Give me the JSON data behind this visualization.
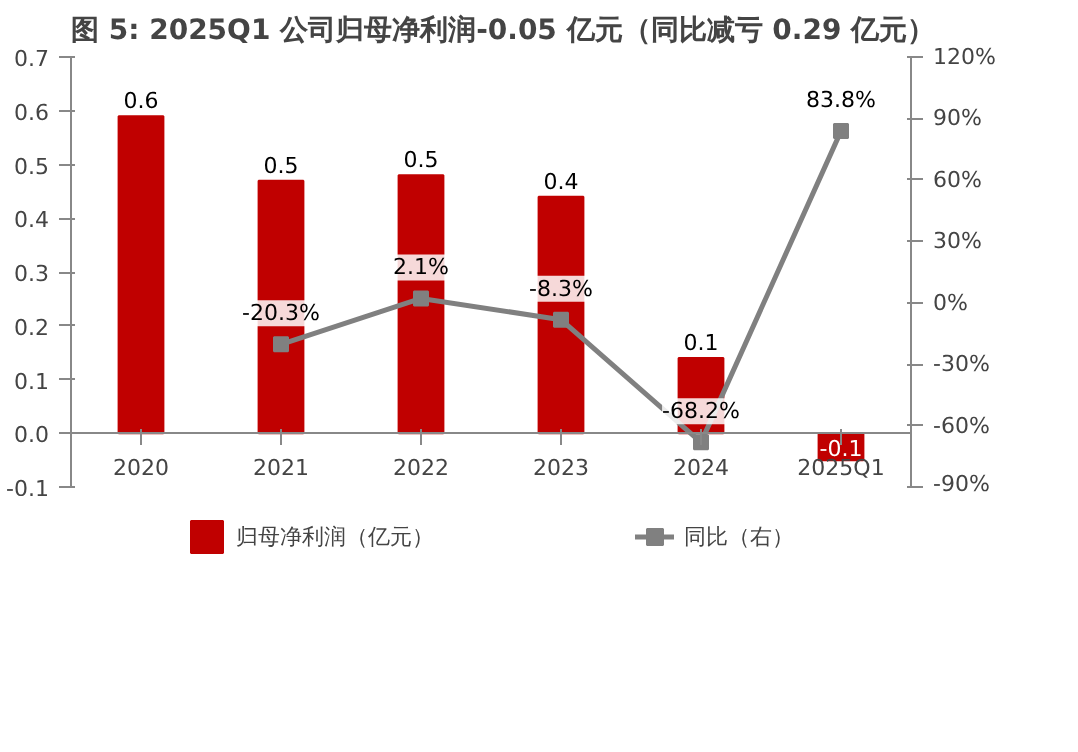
{
  "chart_data": {
    "type": "bar",
    "title": "图 5: 2025Q1 公司归母净利润-0.05 亿元（同比减亏 0.29 亿元）",
    "categories": [
      "2020",
      "2021",
      "2022",
      "2023",
      "2024",
      "2025Q1"
    ],
    "series": [
      {
        "name": "归母净利润（亿元）",
        "color": "#c00000",
        "values": [
          0.59,
          0.47,
          0.48,
          0.44,
          0.14,
          -0.05
        ],
        "value_labels": [
          "0.6",
          "0.5",
          "0.5",
          "0.4",
          "0.1",
          "-0.1"
        ]
      },
      {
        "name": "同比（右）",
        "type": "line",
        "axis": "y2",
        "color": "#808080",
        "marker": "square",
        "values": [
          null,
          -20.3,
          2.1,
          -8.3,
          -68.2,
          83.8
        ],
        "value_labels": [
          null,
          "-20.3%",
          "2.1%",
          "-8.3%",
          "-68.2%",
          "83.8%"
        ]
      }
    ],
    "ylim": [
      -0.1,
      0.7
    ],
    "yticks": [
      {
        "value": -0.1,
        "label": "-0.1"
      },
      {
        "value": 0,
        "label": "0.0"
      },
      0.1,
      0.2,
      0.3,
      0.4,
      0.5,
      0.6,
      0.7
    ],
    "y2lim": [
      -90,
      120
    ],
    "y2ticks": [
      {
        "value": -90,
        "label": "-90%"
      },
      {
        "value": -60,
        "label": "-60%"
      },
      {
        "value": -30,
        "label": "-30%"
      },
      {
        "value": 0,
        "label": "0%"
      },
      {
        "value": 30,
        "label": "30%"
      },
      {
        "value": 60,
        "label": "60%"
      },
      {
        "value": 90,
        "label": "90%"
      },
      {
        "value": 120,
        "label": "120%"
      }
    ],
    "grid": false,
    "legend": "bottom"
  }
}
